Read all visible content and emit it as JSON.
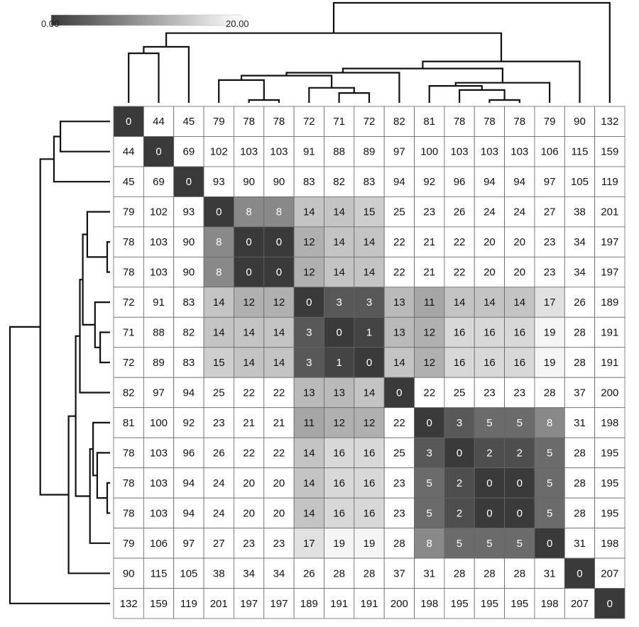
{
  "chart_data": {
    "type": "heatmap",
    "title": "",
    "xlabel": "",
    "ylabel": "",
    "colorbar": {
      "min_label": "0.00",
      "max_label": "20.00",
      "min": 0,
      "max": 20,
      "low_color": "#3a3a3a",
      "high_color": "#ffffff"
    },
    "cell_border_color": "#666666",
    "text_on_dark_color": "#ffffff",
    "text_on_light_color": "#111111",
    "dendrogram_color": "#111111",
    "matrix": [
      [
        0,
        44,
        45,
        79,
        78,
        78,
        72,
        71,
        72,
        82,
        81,
        78,
        78,
        78,
        79,
        90,
        132
      ],
      [
        44,
        0,
        69,
        102,
        103,
        103,
        91,
        88,
        89,
        97,
        100,
        103,
        103,
        103,
        106,
        115,
        159
      ],
      [
        45,
        69,
        0,
        93,
        90,
        90,
        83,
        82,
        83,
        94,
        92,
        96,
        94,
        94,
        97,
        105,
        119
      ],
      [
        79,
        102,
        93,
        0,
        8,
        8,
        14,
        14,
        15,
        25,
        23,
        26,
        24,
        24,
        27,
        38,
        201
      ],
      [
        78,
        103,
        90,
        8,
        0,
        0,
        12,
        14,
        14,
        22,
        21,
        22,
        20,
        20,
        23,
        34,
        197
      ],
      [
        78,
        103,
        90,
        8,
        0,
        0,
        12,
        14,
        14,
        22,
        21,
        22,
        20,
        20,
        23,
        34,
        197
      ],
      [
        72,
        91,
        83,
        14,
        12,
        12,
        0,
        3,
        3,
        13,
        11,
        14,
        14,
        14,
        17,
        26,
        189
      ],
      [
        71,
        88,
        82,
        14,
        14,
        14,
        3,
        0,
        1,
        13,
        12,
        16,
        16,
        16,
        19,
        28,
        191
      ],
      [
        72,
        89,
        83,
        15,
        14,
        14,
        3,
        1,
        0,
        14,
        12,
        16,
        16,
        16,
        19,
        28,
        191
      ],
      [
        82,
        97,
        94,
        25,
        22,
        22,
        13,
        13,
        14,
        0,
        22,
        25,
        23,
        23,
        28,
        37,
        200
      ],
      [
        81,
        100,
        92,
        23,
        21,
        21,
        11,
        12,
        12,
        22,
        0,
        3,
        5,
        5,
        8,
        31,
        198
      ],
      [
        78,
        103,
        96,
        26,
        22,
        22,
        14,
        16,
        16,
        25,
        3,
        0,
        2,
        2,
        5,
        28,
        195
      ],
      [
        78,
        103,
        94,
        24,
        20,
        20,
        14,
        16,
        16,
        23,
        5,
        2,
        0,
        0,
        5,
        28,
        195
      ],
      [
        78,
        103,
        94,
        24,
        20,
        20,
        14,
        16,
        16,
        23,
        5,
        2,
        0,
        0,
        5,
        28,
        195
      ],
      [
        79,
        106,
        97,
        27,
        23,
        23,
        17,
        19,
        19,
        28,
        8,
        5,
        5,
        5,
        0,
        31,
        198
      ],
      [
        90,
        115,
        105,
        38,
        34,
        34,
        26,
        28,
        28,
        37,
        31,
        28,
        28,
        28,
        31,
        0,
        207
      ],
      [
        132,
        159,
        119,
        201,
        197,
        197,
        189,
        191,
        191,
        200,
        198,
        195,
        195,
        195,
        198,
        207,
        0
      ]
    ],
    "dendrogram": {
      "leaf_order": [
        0,
        1,
        2,
        3,
        4,
        5,
        6,
        7,
        8,
        9,
        10,
        11,
        12,
        13,
        14,
        15,
        16
      ],
      "merges": [
        {
          "id": 17,
          "left": 4,
          "right": 5,
          "height": 0
        },
        {
          "id": 18,
          "left": 12,
          "right": 13,
          "height": 0
        },
        {
          "id": 19,
          "left": 7,
          "right": 8,
          "height": 1
        },
        {
          "id": 20,
          "left": 11,
          "right": 18,
          "height": 2
        },
        {
          "id": 21,
          "left": 6,
          "right": 19,
          "height": 3
        },
        {
          "id": 22,
          "left": 10,
          "right": 20,
          "height": 4
        },
        {
          "id": 23,
          "left": 22,
          "right": 14,
          "height": 6
        },
        {
          "id": 24,
          "left": 3,
          "right": 17,
          "height": 8
        },
        {
          "id": 25,
          "left": 24,
          "right": 21,
          "height": 12
        },
        {
          "id": 26,
          "left": 25,
          "right": 9,
          "height": 15
        },
        {
          "id": 27,
          "left": 26,
          "right": 23,
          "height": 20
        },
        {
          "id": 28,
          "left": 27,
          "right": 15,
          "height": 30
        },
        {
          "id": 29,
          "left": 0,
          "right": 1,
          "height": 44
        },
        {
          "id": 30,
          "left": 29,
          "right": 2,
          "height": 57
        },
        {
          "id": 31,
          "left": 30,
          "right": 28,
          "height": 90
        },
        {
          "id": 32,
          "left": 31,
          "right": 16,
          "height": 190
        }
      ]
    }
  }
}
